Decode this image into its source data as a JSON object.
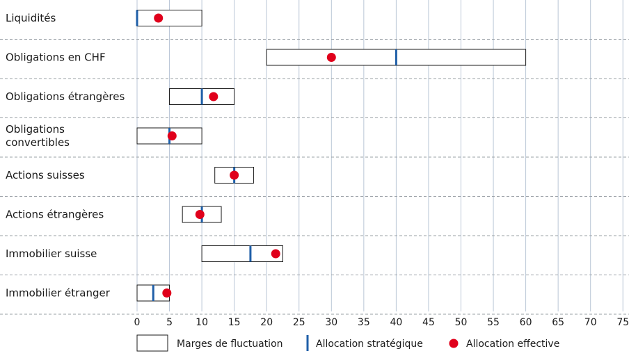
{
  "chart_data": {
    "type": "range",
    "categories": [
      "Liquidités",
      "Obligations en CHF",
      "Obligations étrangères",
      "Obligations convertibles",
      "Actions suisses",
      "Actions étrangères",
      "Immobilier suisse",
      "Immobilier étranger"
    ],
    "category_lines": [
      [
        "Liquidités"
      ],
      [
        "Obligations en CHF"
      ],
      [
        "Obligations étrangères"
      ],
      [
        "Obligations",
        "convertibles"
      ],
      [
        "Actions suisses"
      ],
      [
        "Actions étrangères"
      ],
      [
        "Immobilier suisse"
      ],
      [
        "Immobilier étranger"
      ]
    ],
    "series": [
      {
        "name": "Marges de fluctuation",
        "values": [
          [
            0,
            10
          ],
          [
            20,
            60
          ],
          [
            5,
            15
          ],
          [
            0,
            10
          ],
          [
            12,
            18
          ],
          [
            7,
            13
          ],
          [
            10,
            22.5
          ],
          [
            0,
            5
          ]
        ]
      },
      {
        "name": "Allocation stratégique",
        "values": [
          0,
          40,
          10,
          5,
          15,
          10,
          17.5,
          2.5
        ]
      },
      {
        "name": "Allocation effective",
        "values": [
          3.3,
          30,
          11.8,
          5.4,
          15,
          9.7,
          21.4,
          4.6
        ]
      }
    ],
    "x_ticks": [
      0,
      5,
      10,
      15,
      20,
      25,
      30,
      35,
      40,
      45,
      50,
      55,
      60,
      65,
      70,
      75
    ],
    "xlim": [
      0,
      75
    ],
    "grid": "vertical solid, horizontal dashed",
    "legend_position": "bottom",
    "colors": {
      "range_fill": "#ffffff",
      "range_stroke": "#1a1a1a",
      "strategic": "#1f5fa8",
      "effective": "#e0001b",
      "grid": "#b9c6d6",
      "separator": "#9aa0a6"
    }
  }
}
